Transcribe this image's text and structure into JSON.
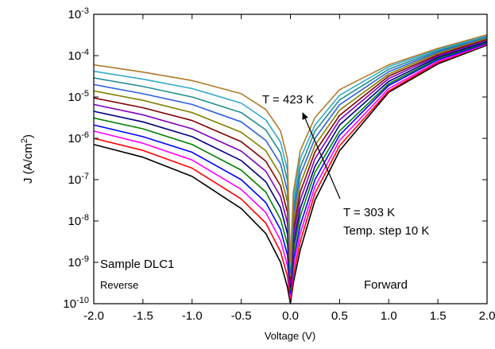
{
  "chart_data": {
    "type": "line",
    "xlabel": "Voltage (V)",
    "ylabel": "J (A/cm^{2})",
    "log_y": true,
    "x": [
      -2,
      -1.5,
      -1,
      -0.5,
      -0.25,
      -0.1,
      -0.03,
      0,
      0.03,
      0.1,
      0.25,
      0.5,
      1,
      1.5,
      2
    ],
    "series": [
      {
        "color": "#000000",
        "values": [
          7.1e-07,
          3.5e-07,
          1.2e-07,
          2e-08,
          5e-09,
          1e-09,
          2.5e-10,
          1e-10,
          3.2e-10,
          2e-09,
          3.2e-08,
          5e-07,
          1.3e-05,
          6.3e-05,
          0.00018
        ]
      },
      {
        "color": "#ff0000",
        "values": [
          1e-06,
          5.1e-07,
          1.9e-07,
          3.4e-08,
          8.9e-09,
          1.8e-09,
          4.6e-10,
          1.2e-10,
          4.8e-10,
          3.2e-09,
          4.7e-08,
          6.6e-07,
          1.4e-05,
          6.8e-05,
          0.00019
        ]
      },
      {
        "color": "#ff00ff",
        "values": [
          1.5e-06,
          7.6e-07,
          3e-07,
          5.8e-08,
          1.6e-08,
          3.4e-09,
          8.3e-10,
          1.5e-10,
          7.4e-10,
          5e-09,
          6.8e-08,
          8.9e-07,
          1.6e-05,
          7.2e-05,
          0.00019
        ]
      },
      {
        "color": "#0000ff",
        "values": [
          2.1e-06,
          1.1e-06,
          4.6e-07,
          1e-07,
          2.8e-08,
          6.2e-09,
          1.5e-09,
          1.8e-10,
          1.1e-09,
          7.9e-09,
          1e-07,
          1.2e-06,
          1.9e-05,
          7.9e-05,
          0.0002
        ]
      },
      {
        "color": "#008000",
        "values": [
          3.1e-06,
          1.7e-06,
          7.1e-07,
          1.7e-07,
          5e-08,
          1.1e-08,
          2.7e-09,
          2.2e-10,
          1.7e-09,
          1.3e-08,
          1.5e-07,
          1.5e-06,
          2.1e-05,
          8.5e-05,
          0.00021
        ]
      },
      {
        "color": "#000080",
        "values": [
          4.5e-06,
          2.5e-06,
          1.1e-06,
          2.9e-07,
          8.9e-08,
          2.1e-08,
          4.9e-09,
          2.6e-10,
          2.6e-09,
          2e-08,
          2.1e-07,
          2.1e-06,
          2.4e-05,
          9.1e-05,
          0.00022
        ]
      },
      {
        "color": "#8000c0",
        "values": [
          6.6e-06,
          3.7e-06,
          1.7e-06,
          4.9e-07,
          1.6e-07,
          3.9e-08,
          8.9e-09,
          3.2e-10,
          4e-09,
          3.2e-08,
          3.2e-07,
          2.8e-06,
          2.8e-05,
          9.8e-05,
          0.00024
        ]
      },
      {
        "color": "#800000",
        "values": [
          9.5e-06,
          5.5e-06,
          2.7e-06,
          8.3e-07,
          2.8e-07,
          7.1e-08,
          1.6e-08,
          3.8e-10,
          6e-09,
          5e-08,
          4.7e-07,
          3.6e-06,
          3.2e-05,
          0.000105,
          0.00025
        ]
      },
      {
        "color": "#808000",
        "values": [
          1.4e-05,
          8.3e-06,
          4.2e-06,
          1.4e-06,
          5e-07,
          1.3e-07,
          2.9e-08,
          4.6e-10,
          9.3e-09,
          7.9e-08,
          6.8e-07,
          4.8e-06,
          3.6e-05,
          0.000115,
          0.00026
        ]
      },
      {
        "color": "#3060e0",
        "values": [
          2e-05,
          1.2e-05,
          6.6e-06,
          2.5e-06,
          8.9e-07,
          2.4e-07,
          5.2e-08,
          5.6e-10,
          1.4e-08,
          1.3e-07,
          1e-06,
          6.5e-06,
          4.1e-05,
          0.000123,
          0.00028
        ]
      },
      {
        "color": "#1f8f8f",
        "values": [
          2.9e-05,
          1.8e-05,
          1e-05,
          4.2e-06,
          1.6e-06,
          4.5e-07,
          9.5e-08,
          6.8e-10,
          2.1e-08,
          2e-07,
          1.5e-06,
          8.5e-06,
          4.7e-05,
          0.000132,
          0.00029
        ]
      },
      {
        "color": "#33aacc",
        "values": [
          4.2e-05,
          2.7e-05,
          1.6e-05,
          7.1e-06,
          2.8e-06,
          8.1e-07,
          1.7e-07,
          8.3e-10,
          3.3e-08,
          3.2e-07,
          2.1e-06,
          1.1e-05,
          5.4e-05,
          0.000141,
          0.0003
        ]
      },
      {
        "color": "#b07a2a",
        "values": [
          6e-05,
          4e-05,
          2.5e-05,
          1.2e-05,
          5e-06,
          1.5e-06,
          3.2e-07,
          1e-09,
          5e-08,
          5e-07,
          3.2e-06,
          1.5e-05,
          6e-05,
          0.00015,
          0.00032
        ]
      }
    ],
    "xlim": [
      -2,
      2
    ],
    "xticks": [
      {
        "value": -2,
        "label": "-2.0"
      },
      {
        "value": -1.5,
        "label": "-1.5"
      },
      {
        "value": -1,
        "label": "-1.0"
      },
      {
        "value": -0.5,
        "label": "-0.5"
      },
      {
        "value": 0,
        "label": "0.0"
      },
      {
        "value": 0.5,
        "label": "0.5"
      },
      {
        "value": 1,
        "label": "1.0"
      },
      {
        "value": 1.5,
        "label": "1.5"
      },
      {
        "value": 2,
        "label": "2.0"
      }
    ],
    "ylim": [
      1e-10,
      0.001
    ],
    "yticks": [
      {
        "value": 1e-10,
        "label": "10^{-10}"
      },
      {
        "value": 1e-09,
        "label": "10^{-9}"
      },
      {
        "value": 1e-08,
        "label": "10^{-8}"
      },
      {
        "value": 1e-07,
        "label": "10^{-7}"
      },
      {
        "value": 1e-06,
        "label": "10^{-6}"
      },
      {
        "value": 1e-05,
        "label": "10^{-5}"
      },
      {
        "value": 0.0001,
        "label": "10^{-4}"
      },
      {
        "value": 0.001,
        "label": "10^{-3}"
      }
    ],
    "annotations": [
      "T = 423 K",
      "T = 303 K",
      "Temp. step 10 K",
      "Sample DLC1",
      "Reverse",
      "Forward"
    ],
    "grid": false
  }
}
